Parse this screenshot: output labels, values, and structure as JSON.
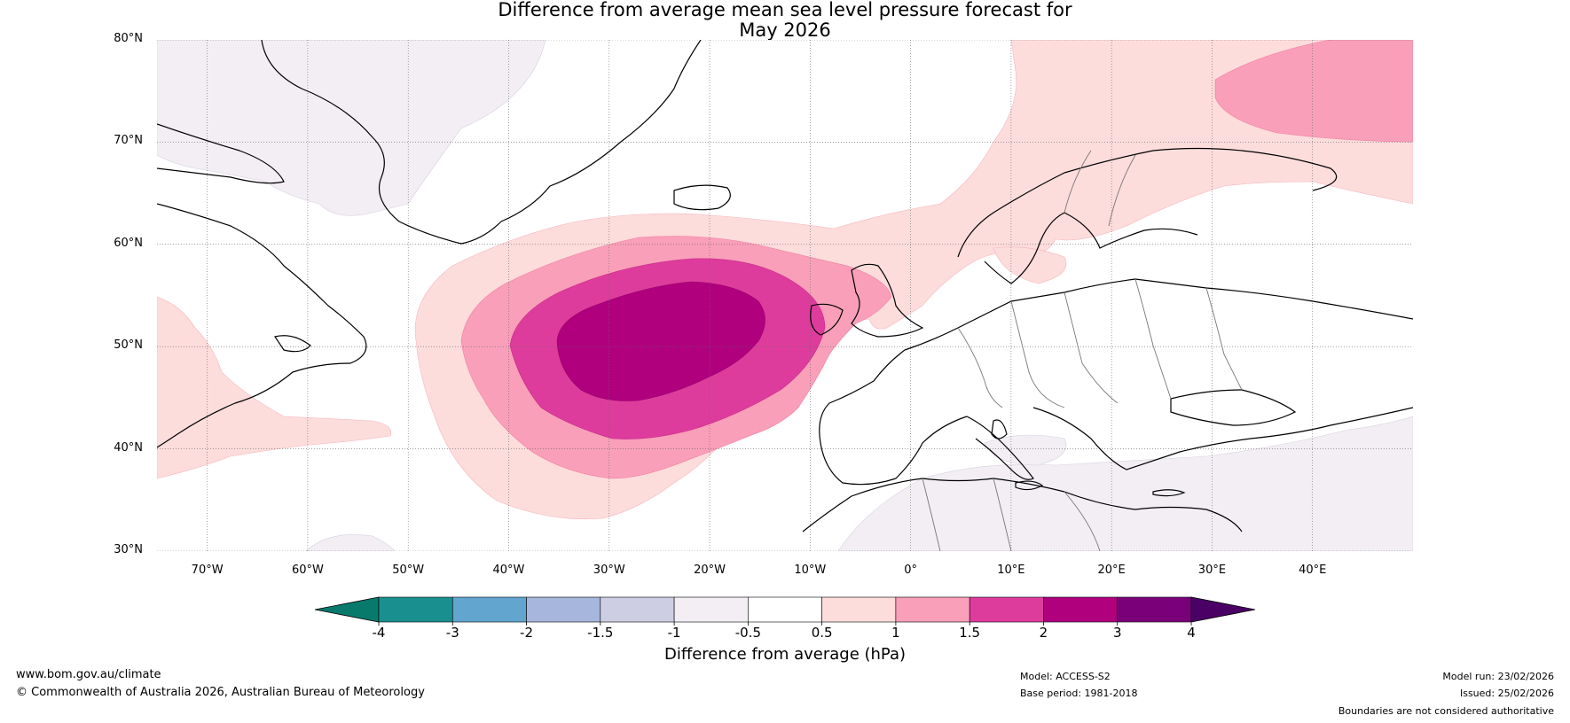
{
  "title": {
    "line1": "Difference from average mean sea level pressure forecast for",
    "line2": "May 2026"
  },
  "map": {
    "region": "North Atlantic and Europe",
    "lat_range": [
      30,
      80
    ],
    "lon_range": [
      -75,
      50
    ],
    "lat_labels": [
      "30°N",
      "40°N",
      "50°N",
      "60°N",
      "70°N",
      "80°N"
    ],
    "lat_values": [
      30,
      40,
      50,
      60,
      70,
      80
    ],
    "lon_labels": [
      "70°W",
      "60°W",
      "50°W",
      "40°W",
      "30°W",
      "20°W",
      "10°W",
      "0°",
      "10°E",
      "20°E",
      "30°E",
      "40°E"
    ],
    "lon_values": [
      -70,
      -60,
      -50,
      -40,
      -30,
      -20,
      -10,
      0,
      10,
      20,
      30,
      40
    ]
  },
  "colorbar": {
    "label": "Difference from average (hPa)",
    "ticks": [
      "-4",
      "-3",
      "-2",
      "-1.5",
      "-1",
      "-0.5",
      "0.5",
      "1",
      "1.5",
      "2",
      "3",
      "4"
    ],
    "colors": [
      "#1a8f8f",
      "#62a6d0",
      "#a6b6dd",
      "#cdcde3",
      "#f2eef4",
      "#ffffff",
      "#fddcdc",
      "#f99fb9",
      "#de3c9c",
      "#b0007e",
      "#7a0079"
    ],
    "under_color": "#087a6c",
    "over_color": "#4b0066"
  },
  "footer": {
    "website": "www.bom.gov.au/climate",
    "copyright": "© Commonwealth of Australia 2026, Australian Bureau of Meteorology",
    "model": "Model: ACCESS-S2",
    "base_period": "Base period: 1981-2018",
    "model_run": "Model run: 23/02/2026",
    "issued": "Issued: 25/02/2026",
    "disclaimer": "Boundaries are not considered authoritative"
  }
}
